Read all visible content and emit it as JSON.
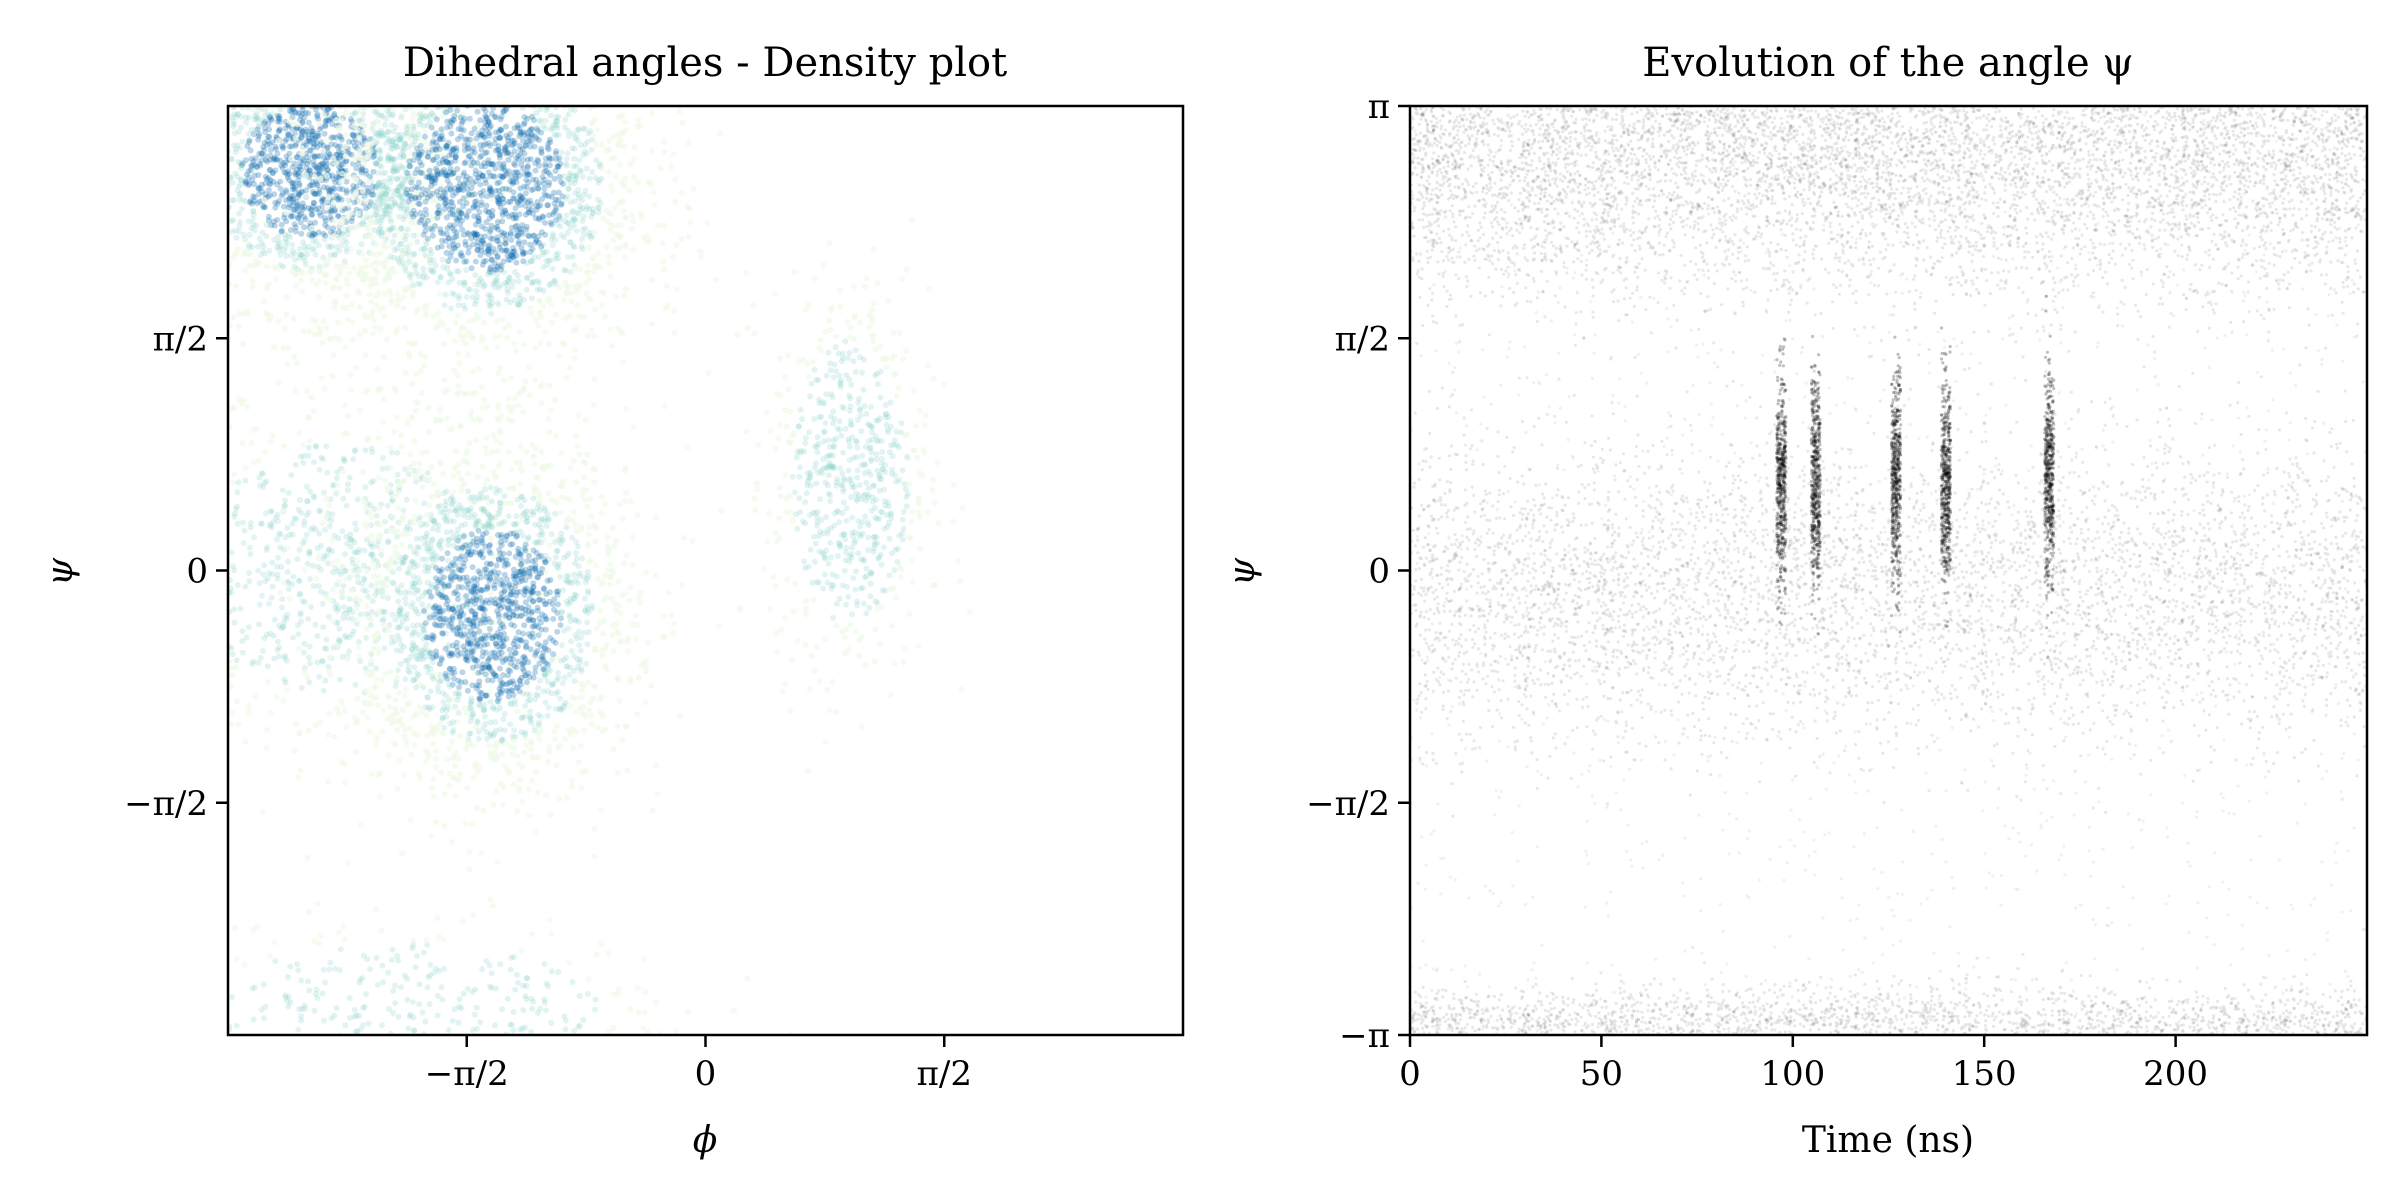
{
  "chart_data": [
    {
      "type": "heatmap",
      "title": "Dihedral angles - Density plot",
      "xlabel": "ϕ",
      "ylabel": "ψ",
      "xlim": [
        -3.1416,
        3.1416
      ],
      "ylim": [
        -3.1416,
        3.1416
      ],
      "grid": false,
      "colormap": "GnBu",
      "x_ticks": [
        {
          "value": -1.5708,
          "label": "−π/2"
        },
        {
          "value": 0,
          "label": "0"
        },
        {
          "value": 1.5708,
          "label": "π/2"
        }
      ],
      "y_ticks": [
        {
          "value": 1.5708,
          "label": "π/2"
        },
        {
          "value": 0,
          "label": "0"
        },
        {
          "value": -1.5708,
          "label": "−π/2"
        }
      ],
      "density_clusters": [
        {
          "phi": -2.6,
          "psi": 2.7,
          "spread_phi": 0.35,
          "spread_psi": 0.35,
          "weight": 0.75
        },
        {
          "phi": -1.45,
          "psi": 2.6,
          "spread_phi": 0.4,
          "spread_psi": 0.45,
          "weight": 1.0
        },
        {
          "phi": -2.4,
          "psi": 0.0,
          "spread_phi": 0.5,
          "spread_psi": 0.45,
          "weight": 0.4
        },
        {
          "phi": -1.4,
          "psi": -0.3,
          "spread_phi": 0.35,
          "spread_psi": 0.45,
          "weight": 0.85
        },
        {
          "phi": 0.95,
          "psi": 0.6,
          "spread_phi": 0.2,
          "spread_psi": 0.5,
          "weight": 0.3
        },
        {
          "phi": -2.0,
          "psi": -3.0,
          "spread_phi": 0.7,
          "spread_psi": 0.25,
          "weight": 0.2
        }
      ],
      "colors": {
        "low": "#f0f9e8",
        "mid": "#7bccc4",
        "high": "#0868ac"
      }
    },
    {
      "type": "scatter",
      "title": "Evolution of the angle ψ",
      "xlabel": "Time (ns)",
      "ylabel": "ψ",
      "xlim": [
        0,
        250
      ],
      "ylim": [
        -3.1416,
        3.1416
      ],
      "grid": false,
      "x_ticks": [
        {
          "value": 0,
          "label": "0"
        },
        {
          "value": 50,
          "label": "50"
        },
        {
          "value": 100,
          "label": "100"
        },
        {
          "value": 150,
          "label": "150"
        },
        {
          "value": 200,
          "label": "200"
        }
      ],
      "y_ticks": [
        {
          "value": 3.1416,
          "label": "π"
        },
        {
          "value": 1.5708,
          "label": "π/2"
        },
        {
          "value": 0,
          "label": "0"
        },
        {
          "value": -1.5708,
          "label": "−π/2"
        },
        {
          "value": -3.1416,
          "label": "−π"
        }
      ],
      "density_bands": [
        {
          "psi": 2.7,
          "spread": 0.45,
          "weight": 1.0
        },
        {
          "psi": -0.15,
          "spread": 0.5,
          "weight": 0.8
        },
        {
          "psi": -3.05,
          "spread": 0.12,
          "weight": 0.35
        }
      ],
      "transitions_ns": [
        97,
        106,
        127,
        140,
        167
      ],
      "point_color": "#000000"
    }
  ]
}
